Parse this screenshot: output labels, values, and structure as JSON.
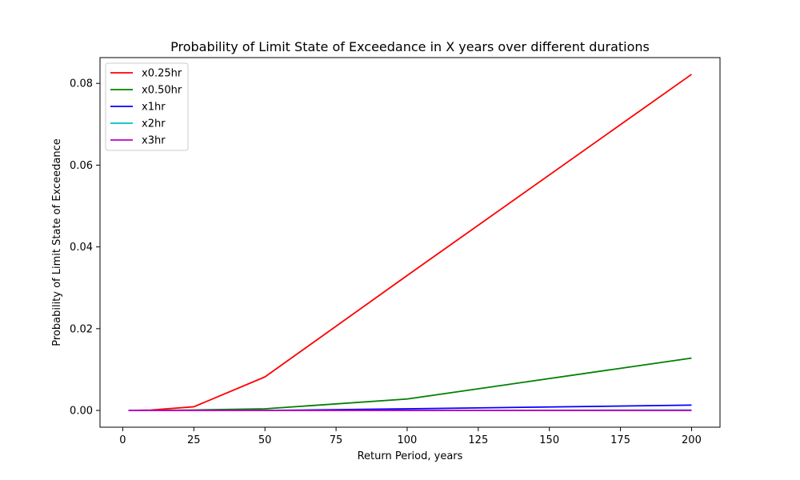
{
  "chart_data": {
    "type": "line",
    "title": "Probability of Limit State of Exceedance in X years over different durations",
    "xlabel": "Return Period, years",
    "ylabel": "Probability of Limit State of Exceedance",
    "xlim": [
      -8,
      210
    ],
    "ylim": [
      -0.0041,
      0.0863
    ],
    "xticks": [
      0,
      25,
      50,
      75,
      100,
      125,
      150,
      175,
      200
    ],
    "yticks": [
      0.0,
      0.02,
      0.04,
      0.06,
      0.08
    ],
    "xtick_labels": [
      "0",
      "25",
      "50",
      "75",
      "100",
      "125",
      "150",
      "175",
      "200"
    ],
    "ytick_labels": [
      "0.00",
      "0.02",
      "0.04",
      "0.06",
      "0.08"
    ],
    "grid": false,
    "legend_position": "top-left",
    "x": [
      2,
      10,
      25,
      50,
      100,
      200
    ],
    "series": [
      {
        "name": "x0.25hr",
        "color": "#ff0000",
        "values": [
          0.0,
          0.0001,
          0.0009,
          0.0082,
          0.033,
          0.0822
        ]
      },
      {
        "name": "x0.50hr",
        "color": "#008000",
        "values": [
          0.0,
          0.0,
          0.0001,
          0.0004,
          0.0028,
          0.0128
        ]
      },
      {
        "name": "x1hr",
        "color": "#0000ff",
        "values": [
          0.0,
          0.0,
          0.0,
          0.0,
          0.0004,
          0.0013
        ]
      },
      {
        "name": "x2hr",
        "color": "#00bfbf",
        "values": [
          0.0,
          0.0,
          0.0,
          0.0,
          0.0,
          0.0001
        ]
      },
      {
        "name": "x3hr",
        "color": "#bf00bf",
        "values": [
          0.0,
          0.0,
          0.0,
          0.0,
          0.0,
          0.0
        ]
      }
    ]
  }
}
